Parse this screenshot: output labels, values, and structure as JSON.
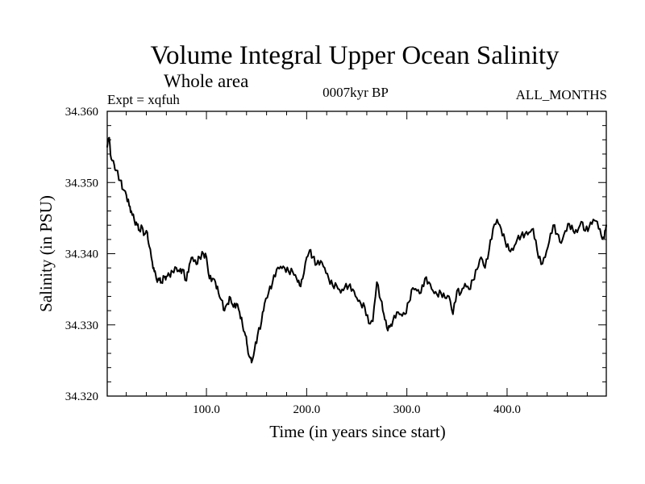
{
  "chart_data": {
    "type": "line",
    "title": "Volume Integral Upper Ocean Salinity",
    "subtitle": "Whole area",
    "left_label": "Expt = xqfuh",
    "center_label": "0007kyr BP",
    "right_label": "ALL_MONTHS",
    "xlabel": "Time (in years since start)",
    "ylabel": "Salinity (in PSU)",
    "xlim": [
      1,
      499
    ],
    "ylim": [
      34.32,
      34.36
    ],
    "x_ticks": [
      100,
      200,
      300,
      400
    ],
    "x_tick_labels": [
      "100.0",
      "200.0",
      "300.0",
      "400.0"
    ],
    "y_ticks": [
      34.32,
      34.33,
      34.34,
      34.35,
      34.36
    ],
    "y_tick_labels": [
      "34.320",
      "34.330",
      "34.340",
      "34.350",
      "34.360"
    ],
    "line_color": "#000000",
    "series": [
      {
        "name": "salinity",
        "x": [
          1,
          3,
          5,
          8,
          10,
          14,
          17,
          20,
          23,
          25,
          28,
          31,
          33,
          36,
          38,
          41,
          43,
          46,
          48,
          50,
          53,
          55,
          58,
          60,
          63,
          66,
          70,
          73,
          76,
          80,
          83,
          86,
          90,
          93,
          97,
          100,
          103,
          106,
          109,
          112,
          115,
          118,
          121,
          124,
          127,
          130,
          133,
          136,
          139,
          141,
          143,
          145,
          148,
          151,
          155,
          158,
          162,
          166,
          170,
          174,
          178,
          182,
          186,
          190,
          193,
          196,
          200,
          203,
          206,
          210,
          214,
          218,
          222,
          226,
          230,
          234,
          238,
          242,
          246,
          250,
          254,
          258,
          262,
          266,
          270,
          274,
          277,
          280,
          283,
          286,
          290,
          294,
          298,
          302,
          306,
          310,
          314,
          318,
          322,
          326,
          330,
          334,
          338,
          342,
          346,
          350,
          354,
          358,
          362,
          366,
          370,
          374,
          378,
          382,
          386,
          390,
          394,
          398,
          402,
          406,
          410,
          414,
          418,
          422,
          426,
          430,
          434,
          438,
          442,
          446,
          450,
          454,
          458,
          462,
          466,
          470,
          474,
          478,
          482,
          486,
          490,
          494,
          497,
          499
        ],
        "values": [
          34.355,
          34.3563,
          34.3533,
          34.3525,
          34.3517,
          34.3503,
          34.349,
          34.3483,
          34.3467,
          34.346,
          34.3447,
          34.344,
          34.3433,
          34.3437,
          34.3427,
          34.343,
          34.341,
          34.3388,
          34.3375,
          34.3365,
          34.3363,
          34.336,
          34.3367,
          34.3368,
          34.337,
          34.3375,
          34.338,
          34.3375,
          34.3378,
          34.3362,
          34.3385,
          34.3395,
          34.3385,
          34.3395,
          34.34,
          34.3395,
          34.3365,
          34.3365,
          34.336,
          34.3345,
          34.3335,
          34.332,
          34.333,
          34.3338,
          34.3325,
          34.333,
          34.3318,
          34.33,
          34.3285,
          34.3268,
          34.3255,
          34.3247,
          34.3265,
          34.3285,
          34.3305,
          34.333,
          34.3345,
          34.336,
          34.3378,
          34.3382,
          34.338,
          34.3375,
          34.3375,
          34.3365,
          34.3355,
          34.3365,
          34.3395,
          34.3405,
          34.3395,
          34.3385,
          34.339,
          34.338,
          34.3365,
          34.3355,
          34.3355,
          34.3345,
          34.3353,
          34.3355,
          34.335,
          34.3338,
          34.333,
          34.3325,
          34.3302,
          34.3305,
          34.336,
          34.3335,
          34.3315,
          34.3296,
          34.3297,
          34.3305,
          34.3318,
          34.3315,
          34.3315,
          34.3332,
          34.3352,
          34.3348,
          34.3345,
          34.3365,
          34.336,
          34.3348,
          34.3343,
          34.3345,
          34.3338,
          34.334,
          34.3315,
          34.3348,
          34.3345,
          34.3358,
          34.335,
          34.3363,
          34.3378,
          34.3395,
          34.338,
          34.3405,
          34.3435,
          34.3448,
          34.3435,
          34.3418,
          34.3405,
          34.3405,
          34.342,
          34.3425,
          34.3428,
          34.343,
          34.3435,
          34.3405,
          34.3385,
          34.3395,
          34.3417,
          34.344,
          34.3428,
          34.3415,
          34.3432,
          34.3442,
          34.3432,
          34.343,
          34.3445,
          34.3432,
          34.3438,
          34.3448,
          34.3445,
          34.3425,
          34.3422,
          34.344
        ]
      }
    ]
  }
}
